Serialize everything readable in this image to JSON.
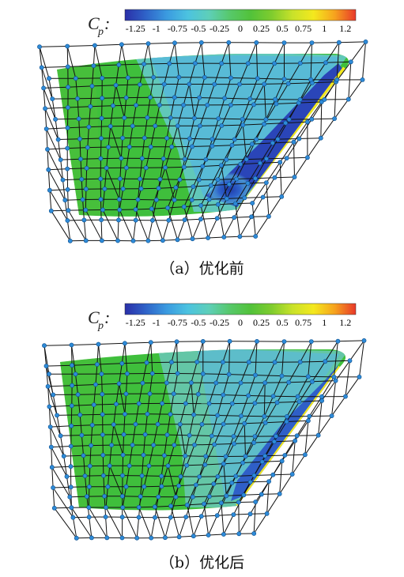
{
  "colorbar": {
    "symbol": "C",
    "subscript": "p",
    "colon": ":",
    "ticks": [
      "-1.25",
      "-1",
      "-0.75",
      "-0.5",
      "-0.25",
      "0",
      "0.25",
      "0.5",
      "0.75",
      "1",
      "1.2"
    ],
    "stops": [
      "#2a2fa8",
      "#2f63c8",
      "#3b9be0",
      "#4cc3e0",
      "#5ecfb8",
      "#57c86a",
      "#52c23a",
      "#7fcc2e",
      "#c9e22a",
      "#f4e81e",
      "#f6a21e",
      "#e8382a"
    ]
  },
  "panels": [
    {
      "caption": "（a）优化前"
    },
    {
      "caption": "（b）优化后"
    }
  ],
  "colors": {
    "surface_green": "#3fbf3c",
    "suction_blue": "#2a3fb8",
    "mid_cyan": "#5fc6d6",
    "lattice": "#111111",
    "node": "#2e8bd8"
  }
}
